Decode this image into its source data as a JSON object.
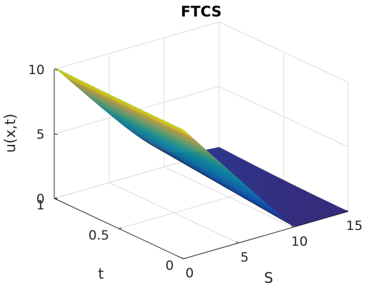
{
  "chart_data": {
    "type": "surface",
    "title": "FTCS",
    "xlabel": "S",
    "ylabel": "t",
    "zlabel": "u(x,t)",
    "xlim": [
      0,
      15
    ],
    "ylim": [
      0,
      1
    ],
    "zlim": [
      0,
      10
    ],
    "x_ticks": [
      "0",
      "5",
      "10",
      "15"
    ],
    "y_ticks": [
      "0",
      "0.5",
      "1"
    ],
    "z_ticks": [
      "0",
      "5",
      "10"
    ],
    "grid": true,
    "colormap": "parula",
    "strike": 10,
    "surface_description": "u(S,t) approximates max(strike - S, 0): at t=0 a sharp kink at S=10; for larger t the kink smooths out and shifts",
    "sample_profiles": [
      {
        "t": 0,
        "S": [
          0,
          5,
          10,
          15
        ],
        "u": [
          10,
          5,
          0,
          0
        ]
      },
      {
        "t": 1,
        "S": [
          0,
          5,
          10,
          15
        ],
        "u": [
          10,
          5.2,
          1.2,
          0
        ]
      }
    ]
  }
}
